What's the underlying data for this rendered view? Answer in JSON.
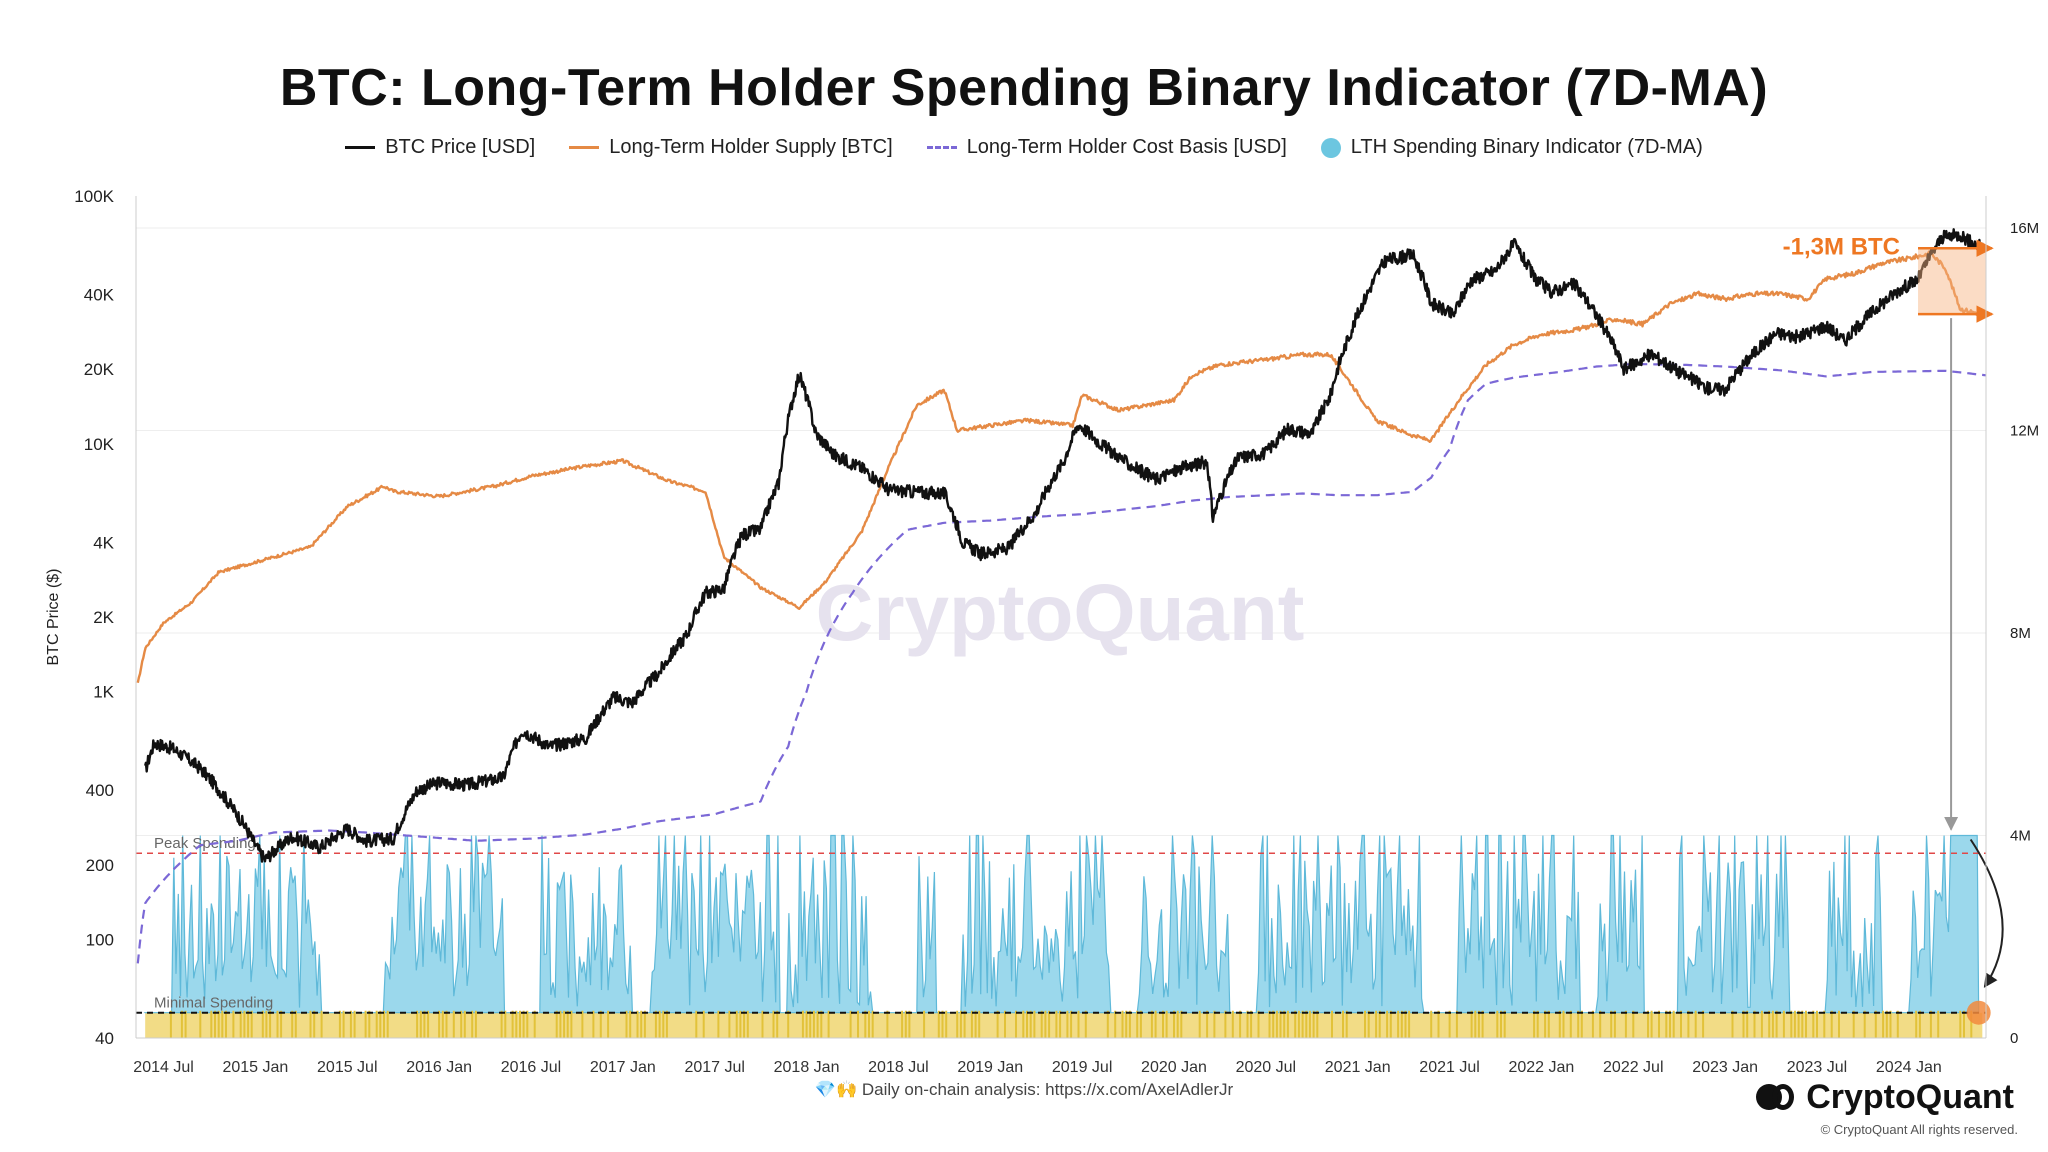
{
  "title": "BTC: Long-Term Holder Spending Binary Indicator (7D-MA)",
  "legend": [
    {
      "label": "BTC Price [USD]",
      "style": "line",
      "color": "#111111"
    },
    {
      "label": "Long-Term Holder Supply [BTC]",
      "style": "line",
      "color": "#e58a45"
    },
    {
      "label": "Long-Term Holder Cost Basis [USD]",
      "style": "dash",
      "color": "#7b68d6"
    },
    {
      "label": "LTH Spending Binary Indicator (7D-MA)",
      "style": "dot",
      "color": "#6cc6e0"
    }
  ],
  "footer": {
    "note": "💎🙌 Daily on-chain analysis: https://x.com/AxelAdlerJr",
    "brand": "CryptoQuant",
    "copyright": "© CryptoQuant All rights reserved.",
    "watermark": "CryptoQuant"
  },
  "chart_data": {
    "type": "line",
    "title": "BTC: Long-Term Holder Spending Binary Indicator (7D-MA)",
    "ylabel": "BTC Price ($)",
    "y_scale": "log",
    "ylim": [
      40,
      100000
    ],
    "y_ticks": [
      "100K",
      "40K",
      "20K",
      "10K",
      "4K",
      "2K",
      "1K",
      "400",
      "200",
      "100",
      "40"
    ],
    "y_tick_values": [
      100000,
      40000,
      20000,
      10000,
      4000,
      2000,
      1000,
      400,
      200,
      100,
      40
    ],
    "y2_ticks": [
      "16M",
      "12M",
      "8M",
      "4M",
      "0"
    ],
    "y2_tick_values": [
      16000000,
      12000000,
      8000000,
      4000000,
      0
    ],
    "y2lim": [
      0,
      16000000
    ],
    "x_ticks": [
      "2014 Jul",
      "2015 Jan",
      "2015 Jul",
      "2016 Jan",
      "2016 Jul",
      "2017 Jan",
      "2017 Jul",
      "2018 Jan",
      "2018 Jul",
      "2019 Jan",
      "2019 Jul",
      "2020 Jan",
      "2020 Jul",
      "2021 Jan",
      "2021 Jul",
      "2022 Jan",
      "2022 Jul",
      "2023 Jan",
      "2023 Jul",
      "2024 Jan"
    ],
    "x_tick_values": [
      2014.5,
      2015.0,
      2015.5,
      2016.0,
      2016.5,
      2017.0,
      2017.5,
      2018.0,
      2018.5,
      2019.0,
      2019.5,
      2020.0,
      2020.5,
      2021.0,
      2021.5,
      2022.0,
      2022.5,
      2023.0,
      2023.5,
      2024.0
    ],
    "xlim": [
      2014.35,
      2024.42
    ],
    "series": [
      {
        "name": "BTC Price [USD]",
        "axis": "left",
        "color": "#111111",
        "points": [
          [
            2014.4,
            480
          ],
          [
            2014.45,
            620
          ],
          [
            2014.55,
            590
          ],
          [
            2014.7,
            490
          ],
          [
            2014.85,
            360
          ],
          [
            2015.0,
            240
          ],
          [
            2015.05,
            210
          ],
          [
            2015.2,
            260
          ],
          [
            2015.35,
            235
          ],
          [
            2015.5,
            280
          ],
          [
            2015.6,
            250
          ],
          [
            2015.75,
            255
          ],
          [
            2015.88,
            400
          ],
          [
            2016.0,
            430
          ],
          [
            2016.15,
            420
          ],
          [
            2016.35,
            450
          ],
          [
            2016.45,
            700
          ],
          [
            2016.6,
            600
          ],
          [
            2016.8,
            650
          ],
          [
            2016.95,
            950
          ],
          [
            2017.05,
            900
          ],
          [
            2017.2,
            1200
          ],
          [
            2017.35,
            1700
          ],
          [
            2017.45,
            2500
          ],
          [
            2017.55,
            2600
          ],
          [
            2017.65,
            4300
          ],
          [
            2017.75,
            4500
          ],
          [
            2017.85,
            7000
          ],
          [
            2017.96,
            19000
          ],
          [
            2018.05,
            11000
          ],
          [
            2018.15,
            9000
          ],
          [
            2018.3,
            8000
          ],
          [
            2018.45,
            6500
          ],
          [
            2018.6,
            6400
          ],
          [
            2018.75,
            6300
          ],
          [
            2018.85,
            4000
          ],
          [
            2018.95,
            3600
          ],
          [
            2019.1,
            3800
          ],
          [
            2019.25,
            5300
          ],
          [
            2019.4,
            8500
          ],
          [
            2019.48,
            12000
          ],
          [
            2019.6,
            10000
          ],
          [
            2019.75,
            8300
          ],
          [
            2019.9,
            7200
          ],
          [
            2020.05,
            8000
          ],
          [
            2020.18,
            8500
          ],
          [
            2020.21,
            5000
          ],
          [
            2020.35,
            8800
          ],
          [
            2020.5,
            9200
          ],
          [
            2020.62,
            11500
          ],
          [
            2020.75,
            11000
          ],
          [
            2020.85,
            15500
          ],
          [
            2020.96,
            28000
          ],
          [
            2021.05,
            40000
          ],
          [
            2021.15,
            55000
          ],
          [
            2021.3,
            58000
          ],
          [
            2021.4,
            37000
          ],
          [
            2021.52,
            33000
          ],
          [
            2021.62,
            46000
          ],
          [
            2021.75,
            50000
          ],
          [
            2021.85,
            64000
          ],
          [
            2021.96,
            47000
          ],
          [
            2022.05,
            41000
          ],
          [
            2022.18,
            44000
          ],
          [
            2022.3,
            33000
          ],
          [
            2022.45,
            20000
          ],
          [
            2022.6,
            23000
          ],
          [
            2022.75,
            19500
          ],
          [
            2022.9,
            16800
          ],
          [
            2023.0,
            16600
          ],
          [
            2023.15,
            23000
          ],
          [
            2023.28,
            28000
          ],
          [
            2023.4,
            27000
          ],
          [
            2023.55,
            30000
          ],
          [
            2023.65,
            26000
          ],
          [
            2023.8,
            34000
          ],
          [
            2023.95,
            42000
          ],
          [
            2024.05,
            46000
          ],
          [
            2024.18,
            68000
          ],
          [
            2024.28,
            70000
          ],
          [
            2024.35,
            64000
          ],
          [
            2024.4,
            63000
          ]
        ]
      },
      {
        "name": "Long-Term Holder Supply [BTC]",
        "axis": "right",
        "color": "#e58a45",
        "points": [
          [
            2014.36,
            7000000
          ],
          [
            2014.4,
            7700000
          ],
          [
            2014.5,
            8200000
          ],
          [
            2014.65,
            8600000
          ],
          [
            2014.8,
            9200000
          ],
          [
            2015.0,
            9400000
          ],
          [
            2015.3,
            9700000
          ],
          [
            2015.5,
            10500000
          ],
          [
            2015.7,
            10900000
          ],
          [
            2015.75,
            10800000
          ],
          [
            2016.0,
            10700000
          ],
          [
            2016.3,
            10900000
          ],
          [
            2016.5,
            11100000
          ],
          [
            2016.8,
            11300000
          ],
          [
            2017.0,
            11400000
          ],
          [
            2017.25,
            11000000
          ],
          [
            2017.45,
            10800000
          ],
          [
            2017.55,
            9500000
          ],
          [
            2017.75,
            8900000
          ],
          [
            2017.96,
            8500000
          ],
          [
            2018.1,
            9000000
          ],
          [
            2018.3,
            10000000
          ],
          [
            2018.45,
            11300000
          ],
          [
            2018.6,
            12500000
          ],
          [
            2018.75,
            12800000
          ],
          [
            2018.82,
            12000000
          ],
          [
            2019.0,
            12100000
          ],
          [
            2019.2,
            12200000
          ],
          [
            2019.45,
            12100000
          ],
          [
            2019.5,
            12700000
          ],
          [
            2019.7,
            12400000
          ],
          [
            2019.85,
            12500000
          ],
          [
            2020.0,
            12600000
          ],
          [
            2020.1,
            13100000
          ],
          [
            2020.25,
            13300000
          ],
          [
            2020.5,
            13400000
          ],
          [
            2020.7,
            13500000
          ],
          [
            2020.85,
            13500000
          ],
          [
            2020.95,
            13000000
          ],
          [
            2021.1,
            12200000
          ],
          [
            2021.3,
            11900000
          ],
          [
            2021.4,
            11800000
          ],
          [
            2021.55,
            12600000
          ],
          [
            2021.7,
            13300000
          ],
          [
            2021.85,
            13700000
          ],
          [
            2022.0,
            13900000
          ],
          [
            2022.2,
            14000000
          ],
          [
            2022.4,
            14200000
          ],
          [
            2022.55,
            14100000
          ],
          [
            2022.7,
            14500000
          ],
          [
            2022.85,
            14700000
          ],
          [
            2023.0,
            14600000
          ],
          [
            2023.15,
            14700000
          ],
          [
            2023.3,
            14700000
          ],
          [
            2023.45,
            14600000
          ],
          [
            2023.55,
            15000000
          ],
          [
            2023.7,
            15100000
          ],
          [
            2023.85,
            15300000
          ],
          [
            2024.0,
            15400000
          ],
          [
            2024.12,
            15500000
          ],
          [
            2024.2,
            15200000
          ],
          [
            2024.28,
            14400000
          ],
          [
            2024.4,
            14300000
          ]
        ]
      },
      {
        "name": "Long-Term Holder Cost Basis [USD]",
        "axis": "left",
        "color": "#7b68d6",
        "dashed": true,
        "points": [
          [
            2014.36,
            80
          ],
          [
            2014.4,
            140
          ],
          [
            2014.55,
            190
          ],
          [
            2014.7,
            240
          ],
          [
            2014.9,
            250
          ],
          [
            2015.1,
            270
          ],
          [
            2015.4,
            275
          ],
          [
            2015.6,
            270
          ],
          [
            2015.9,
            260
          ],
          [
            2016.2,
            250
          ],
          [
            2016.5,
            255
          ],
          [
            2016.8,
            265
          ],
          [
            2017.0,
            280
          ],
          [
            2017.2,
            300
          ],
          [
            2017.5,
            320
          ],
          [
            2017.75,
            360
          ],
          [
            2017.9,
            600
          ],
          [
            2018.0,
            1000
          ],
          [
            2018.1,
            1600
          ],
          [
            2018.25,
            2500
          ],
          [
            2018.4,
            3500
          ],
          [
            2018.55,
            4500
          ],
          [
            2018.75,
            4800
          ],
          [
            2019.0,
            4900
          ],
          [
            2019.3,
            5100
          ],
          [
            2019.5,
            5200
          ],
          [
            2019.7,
            5400
          ],
          [
            2019.9,
            5600
          ],
          [
            2020.1,
            5900
          ],
          [
            2020.3,
            6100
          ],
          [
            2020.5,
            6200
          ],
          [
            2020.7,
            6300
          ],
          [
            2020.9,
            6200
          ],
          [
            2021.1,
            6200
          ],
          [
            2021.3,
            6400
          ],
          [
            2021.4,
            7300
          ],
          [
            2021.5,
            9500
          ],
          [
            2021.6,
            15000
          ],
          [
            2021.7,
            17500
          ],
          [
            2021.85,
            18500
          ],
          [
            2022.1,
            19500
          ],
          [
            2022.3,
            20500
          ],
          [
            2022.5,
            21000
          ],
          [
            2022.8,
            20800
          ],
          [
            2023.0,
            20500
          ],
          [
            2023.3,
            19800
          ],
          [
            2023.55,
            18700
          ],
          [
            2023.8,
            19500
          ],
          [
            2024.0,
            19600
          ],
          [
            2024.2,
            19700
          ],
          [
            2024.42,
            18900
          ]
        ]
      },
      {
        "name": "LTH Spending Binary Indicator (7D-MA)",
        "axis": "right",
        "color": "#6cc6e0",
        "type": "area",
        "seed": 41,
        "base_level": 0.5
      }
    ],
    "reference_lines": [
      {
        "label": "Peak Spending",
        "color": "#e04848",
        "style": "dashed"
      },
      {
        "label": "Minimal Spending",
        "color": "#111111",
        "style": "dashed"
      }
    ],
    "annotations": [
      {
        "text": "-1,3M BTC",
        "color": "#ee7722"
      }
    ]
  }
}
